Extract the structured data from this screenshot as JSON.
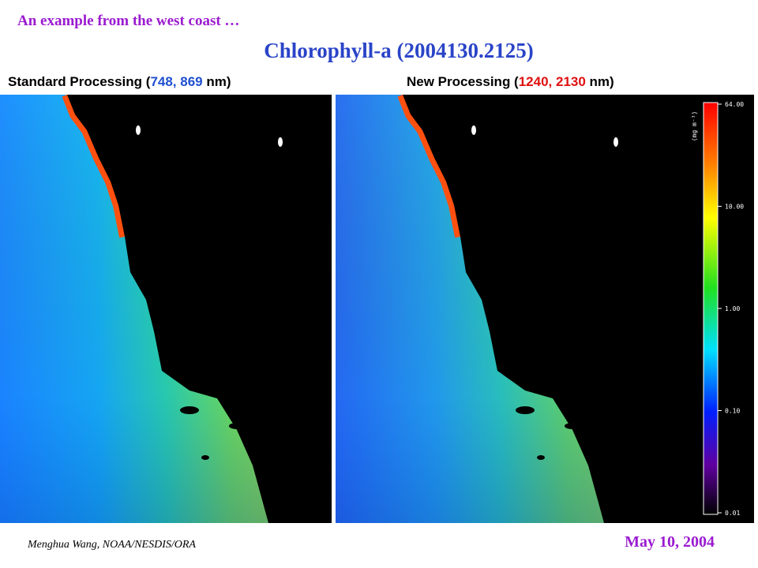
{
  "header": {
    "intro": "An example from the west coast …",
    "title": "Chlorophyll-a (2004130.2125)"
  },
  "panels": [
    {
      "label_parts": [
        "Standard Processing (",
        "748, 869",
        " nm)"
      ]
    },
    {
      "label_parts": [
        "New Processing (",
        "1240, 2130",
        " nm)"
      ]
    }
  ],
  "colorbar": {
    "unit": "(mg m⁻³)",
    "ticks": [
      "64.00",
      "10.00",
      "1.00",
      "0.10",
      "0.01"
    ]
  },
  "footer": {
    "author": "Menghua Wang, NOAA/NESDIS/ORA",
    "date": "May 10, 2004"
  }
}
